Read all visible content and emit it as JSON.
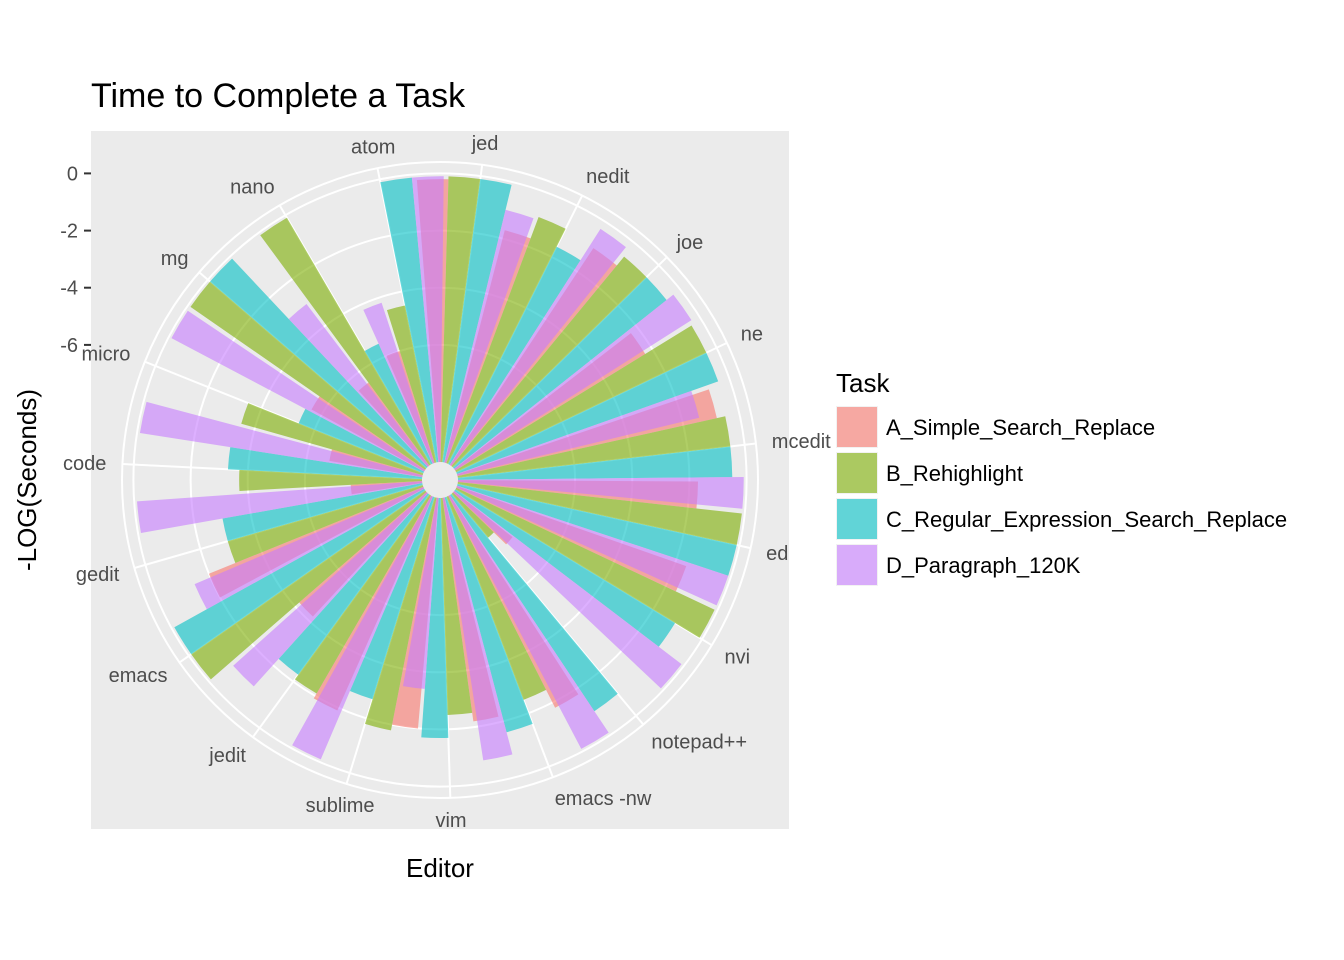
{
  "chart_data": {
    "type": "bar",
    "coord": "polar",
    "title": "Time to Complete a Task",
    "xlabel": "Editor",
    "ylabel": "-LOG(Seconds)",
    "yticks": [
      "0",
      "-2",
      "-4",
      "-6"
    ],
    "ylim": [
      -10.1,
      0.4
    ],
    "grid": true,
    "legend": {
      "title": "Task",
      "position": "right"
    },
    "categories": [
      "jed",
      "nedit",
      "joe",
      "ne",
      "mcedit",
      "ed",
      "nvi",
      "notepad++",
      "emacs -nw",
      "vim",
      "sublime",
      "jedit",
      "emacs",
      "gedit",
      "code",
      "micro",
      "mg",
      "nano",
      "atom"
    ],
    "series": [
      {
        "name": "A_Simple_Search_Replace",
        "color": "#F8766D",
        "values": [
          -0.2,
          -1.7,
          -1.0,
          -2.3,
          -0.8,
          -1.7,
          -1.6,
          -7.5,
          -1.8,
          -2.2,
          -2.0,
          -1.9,
          -4.2,
          -2.0,
          -7.6,
          -6.8,
          -5.6,
          -6.5,
          -6.0
        ]
      },
      {
        "name": "B_Rehighlight",
        "color": "#7CAE00",
        "values": [
          -0.1,
          -0.9,
          -0.6,
          -0.4,
          -0.5,
          -0.1,
          -0.1,
          -8.1,
          -2.5,
          -2.5,
          -1.8,
          -2.1,
          -0.1,
          -3.0,
          -3.7,
          -3.5,
          -0.1,
          -0.1,
          -4.5
        ]
      },
      {
        "name": "C_Regular_Expression_Search_Replace",
        "color": "#00BFC4",
        "values": [
          -0.1,
          -1.6,
          -0.6,
          -0.4,
          -0.5,
          -0.1,
          -1.1,
          -1.0,
          -1.6,
          -1.7,
          -2.7,
          -2.3,
          -0.1,
          -3.0,
          -3.3,
          -5.4,
          -0.1,
          -5.5,
          -0.1
        ]
      },
      {
        "name": "D_Paragraph_120K",
        "color": "#C77CFF",
        "values": [
          -1.0,
          -0.3,
          -0.3,
          -1.4,
          -0.1,
          -0.1,
          -0.1,
          -0.1,
          -0.8,
          -3.4,
          -0.1,
          -1.0,
          -1.4,
          -0.1,
          -0.1,
          -0.1,
          -3.0,
          -4.2,
          -0.1
        ]
      }
    ]
  }
}
